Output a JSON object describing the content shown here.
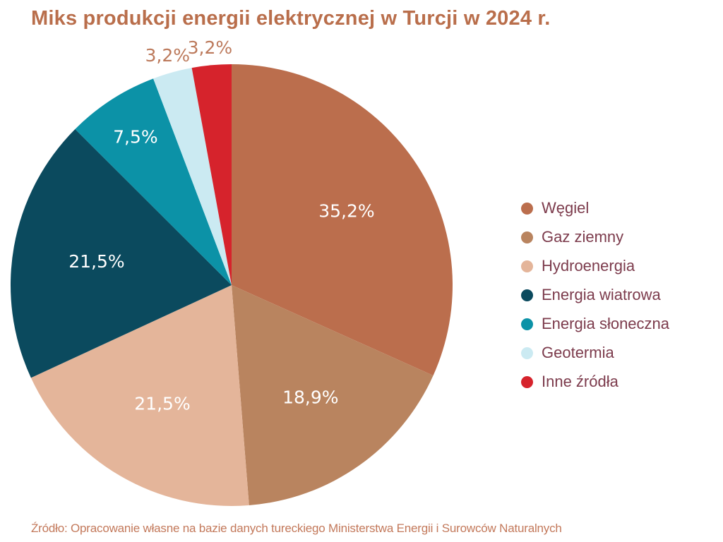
{
  "title": "Miks produkcji energii elektrycznej w Turcji w 2024 r.",
  "source": "Źródło: Opracowanie własne na bazie danych tureckiego Ministerstwa Energii i Surowców Naturalnych",
  "colors": {
    "background": "#ffffff",
    "title_text": "#b96e4b",
    "legend_text": "#7c3b4c",
    "source_text": "#c3795b",
    "label_inside": "#ffffff",
    "label_outside": "#bc795b"
  },
  "chart_data": {
    "type": "pie",
    "title": "Miks produkcji energii elektrycznej w Turcji w 2024 r.",
    "legend_position": "right",
    "start_angle_deg": 0,
    "direction": "clockwise",
    "label_color_inside": "#ffffff",
    "label_color_outside": "#bc795b",
    "slices": [
      {
        "label": "Węgiel",
        "value": 35.2,
        "display": "35,2%",
        "color": "#bb6e4d"
      },
      {
        "label": "Gaz ziemny",
        "value": 18.9,
        "display": "18,9%",
        "color": "#b9845f"
      },
      {
        "label": "Hydroenergia",
        "value": 21.5,
        "display": "21,5%",
        "color": "#e4b59a"
      },
      {
        "label": "Energia wiatrowa",
        "value": 21.5,
        "display": "21,5%",
        "color": "#0b4a5e"
      },
      {
        "label": "Energia słoneczna",
        "value": 7.5,
        "display": "7,5%",
        "color": "#0c92a7"
      },
      {
        "label": "Geotermia",
        "value": 3.2,
        "display": "3,2%",
        "color": "#cbeaf2"
      },
      {
        "label": "Inne źródła",
        "value": 3.2,
        "display": "3,2%",
        "color": "#d6232c"
      }
    ]
  }
}
